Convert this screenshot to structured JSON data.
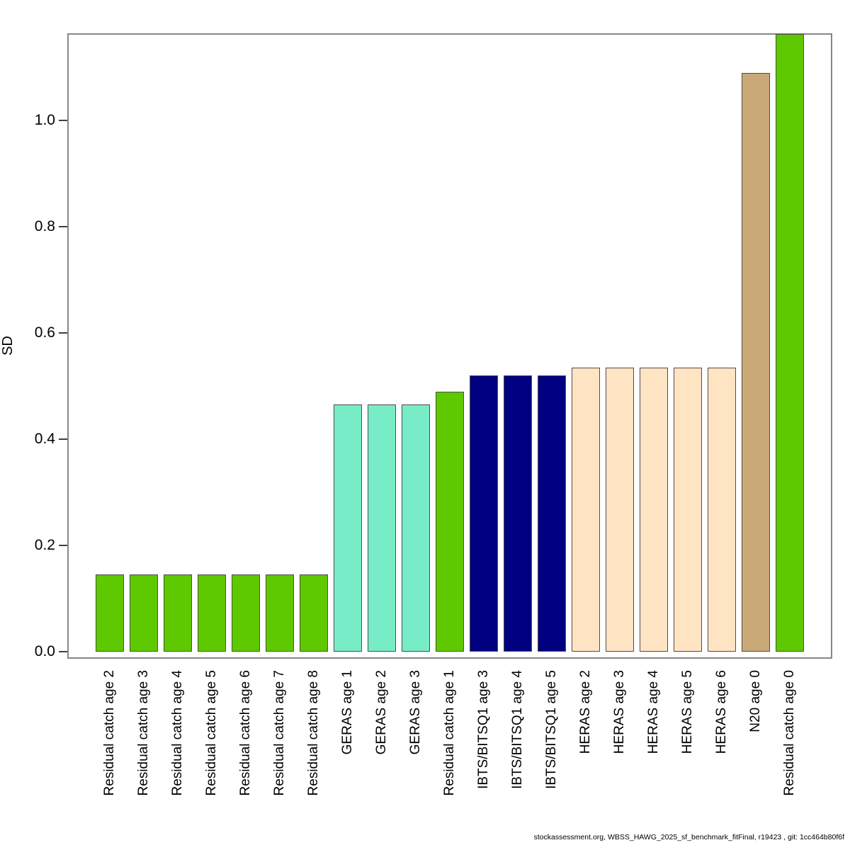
{
  "chart_data": {
    "type": "bar",
    "title": "",
    "xlabel": "",
    "ylabel": "SD",
    "ylim": [
      0.0,
      1.17
    ],
    "yticks": [
      "0.0",
      "0.2",
      "0.4",
      "0.6",
      "0.8",
      "1.0"
    ],
    "grid": false,
    "legend_position": "none",
    "categories": [
      "Residual catch age 2",
      "Residual catch age 3",
      "Residual catch age 4",
      "Residual catch age 5",
      "Residual catch age 6",
      "Residual catch age 7",
      "Residual catch age 8",
      "GERAS age 1",
      "GERAS age 2",
      "GERAS age 3",
      "Residual catch age 1",
      "IBTS/BITSQ1 age 3",
      "IBTS/BITSQ1 age 4",
      "IBTS/BITSQ1 age 5",
      "HERAS age 2",
      "HERAS age 3",
      "HERAS age 4",
      "HERAS age 5",
      "HERAS age 6",
      "N20 age 0",
      "Residual catch age 0"
    ],
    "values": [
      0.145,
      0.145,
      0.145,
      0.145,
      0.145,
      0.145,
      0.145,
      0.465,
      0.465,
      0.465,
      0.49,
      0.52,
      0.52,
      0.52,
      0.535,
      0.535,
      0.535,
      0.535,
      0.535,
      1.09,
      1.165
    ],
    "colors": [
      "#5EC800",
      "#5EC800",
      "#5EC800",
      "#5EC800",
      "#5EC800",
      "#5EC800",
      "#5EC800",
      "#78ECC6",
      "#78ECC6",
      "#78ECC6",
      "#5EC800",
      "#000080",
      "#000080",
      "#000080",
      "#FFE4C4",
      "#FFE4C4",
      "#FFE4C4",
      "#FFE4C4",
      "#FFE4C4",
      "#CAA978",
      "#5EC800"
    ],
    "fleet_colors": {
      "residual_catch": "#5EC800",
      "geras": "#78ECC6",
      "ibts_bitsq1": "#000080",
      "heras": "#FFE4C4",
      "n20": "#CAA978"
    },
    "frame_color": "#878787",
    "bar_border_color": "#4d4d4d"
  },
  "footer": {
    "text": "stockassessment.org, WBSS_HAWG_2025_sf_benchmark_fitFinal, r19423 , git: 1cc464b80f6f"
  }
}
